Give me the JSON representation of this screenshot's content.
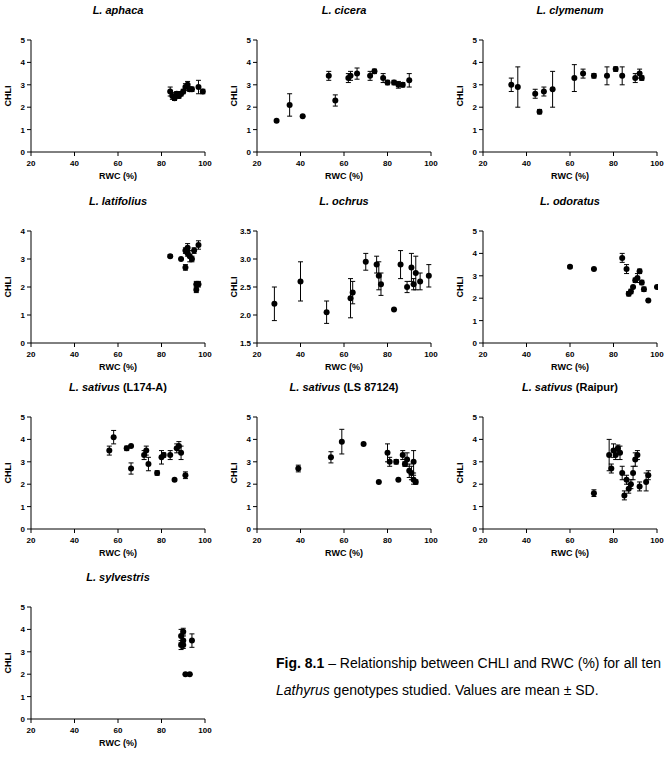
{
  "chart_data": [
    {
      "type": "scatter",
      "title": "L. aphaca",
      "x_label": "RWC (%)",
      "y_label": "CHLI",
      "xlim": [
        20,
        100
      ],
      "xticks": [
        20,
        40,
        60,
        80,
        100
      ],
      "ylim": [
        0,
        5
      ],
      "yticks": [
        0,
        1,
        2,
        3,
        4,
        5
      ],
      "marker": "circle",
      "color": "#000000",
      "x": [
        84,
        85,
        86,
        87,
        88,
        89,
        90,
        91,
        92,
        93,
        94,
        97,
        99
      ],
      "values": [
        2.7,
        2.5,
        2.4,
        2.6,
        2.5,
        2.6,
        2.7,
        2.9,
        3.0,
        2.8,
        2.8,
        2.9,
        2.7
      ],
      "errors": [
        0.2,
        0.15,
        0.1,
        0.1,
        0.1,
        0.1,
        0.1,
        0.15,
        0.15,
        0.1,
        0.1,
        0.3,
        0.1
      ]
    },
    {
      "type": "scatter",
      "title": "L. cicera",
      "x_label": "RWC (%)",
      "y_label": "CHLI",
      "xlim": [
        20,
        100
      ],
      "xticks": [
        20,
        40,
        60,
        80,
        100
      ],
      "ylim": [
        0,
        5
      ],
      "yticks": [
        0,
        1,
        2,
        3,
        4,
        5
      ],
      "marker": "circle",
      "color": "#000000",
      "x": [
        29,
        35,
        41,
        53,
        56,
        62,
        63,
        66,
        72,
        74,
        78,
        80,
        83,
        85,
        87,
        90
      ],
      "values": [
        1.4,
        2.1,
        1.6,
        3.4,
        2.3,
        3.3,
        3.4,
        3.5,
        3.4,
        3.6,
        3.3,
        3.1,
        3.1,
        3.0,
        3.0,
        3.2
      ],
      "errors": [
        0.05,
        0.5,
        0,
        0.2,
        0.25,
        0.2,
        0.2,
        0.25,
        0.2,
        0.1,
        0.2,
        0.1,
        0.1,
        0.15,
        0.1,
        0.3
      ]
    },
    {
      "type": "scatter",
      "title": "L. clymenum",
      "x_label": "RWC (%)",
      "y_label": "CHLI",
      "xlim": [
        20,
        100
      ],
      "xticks": [
        20,
        40,
        60,
        80,
        100
      ],
      "ylim": [
        0,
        5
      ],
      "yticks": [
        0,
        1,
        2,
        3,
        4,
        5
      ],
      "marker": "circle",
      "color": "#000000",
      "x": [
        33,
        36,
        44,
        46,
        48,
        52,
        62,
        66,
        71,
        77,
        81,
        84,
        90,
        92,
        93
      ],
      "values": [
        3.0,
        2.9,
        2.6,
        1.8,
        2.7,
        2.8,
        3.3,
        3.5,
        3.4,
        3.4,
        3.7,
        3.4,
        3.3,
        3.5,
        3.3
      ],
      "errors": [
        0.3,
        0.9,
        0.2,
        0.1,
        0.2,
        0.8,
        0.6,
        0.2,
        0.1,
        0.4,
        0.1,
        0.4,
        0.2,
        0.2,
        0.1
      ]
    },
    {
      "type": "scatter",
      "title": "L. latifolius",
      "x_label": "RWC (%)",
      "y_label": "CHLI",
      "xlim": [
        20,
        100
      ],
      "xticks": [
        20,
        40,
        60,
        80,
        100
      ],
      "ylim": [
        0,
        4
      ],
      "yticks": [
        0,
        1,
        2,
        3,
        4
      ],
      "marker": "circle",
      "color": "#000000",
      "x": [
        84,
        89,
        91,
        91,
        92,
        92,
        93,
        94,
        95,
        96,
        96,
        97,
        97
      ],
      "values": [
        3.1,
        3.0,
        3.3,
        2.7,
        3.4,
        3.2,
        3.1,
        3.0,
        3.3,
        2.1,
        1.9,
        3.5,
        2.1
      ],
      "errors": [
        0.05,
        0,
        0.1,
        0.1,
        0.15,
        0.1,
        0.2,
        0.1,
        0.1,
        0.1,
        0.1,
        0.15,
        0.1
      ]
    },
    {
      "type": "scatter",
      "title": "L. ochrus",
      "x_label": "RWC (%)",
      "y_label": "CHLI",
      "xlim": [
        20,
        100
      ],
      "xticks": [
        20,
        40,
        60,
        80,
        100
      ],
      "ylim": [
        1.5,
        3.5
      ],
      "yticks": [
        1.5,
        {
          "value": 2,
          "label": "2.0"
        },
        2.5,
        {
          "value": 3,
          "label": "3.0"
        },
        3.5
      ],
      "marker": "circle",
      "color": "#000000",
      "x": [
        28,
        40,
        52,
        63,
        64,
        70,
        75,
        76,
        77,
        83,
        86,
        89,
        91,
        92,
        93,
        95,
        99
      ],
      "values": [
        2.2,
        2.6,
        2.05,
        2.3,
        2.4,
        2.95,
        2.9,
        2.7,
        2.55,
        2.1,
        2.9,
        2.5,
        2.85,
        2.55,
        2.75,
        2.6,
        2.7
      ],
      "errors": [
        0.3,
        0.35,
        0.2,
        0.35,
        0.2,
        0.15,
        0.15,
        0.25,
        0.2,
        0,
        0.25,
        0.1,
        0.25,
        0.1,
        0.3,
        0.15,
        0.2
      ]
    },
    {
      "type": "scatter",
      "title": "L. odoratus",
      "x_label": "RWC (%)",
      "y_label": "CHLI",
      "xlim": [
        20,
        100
      ],
      "xticks": [
        20,
        40,
        60,
        80,
        100
      ],
      "ylim": [
        0,
        5
      ],
      "yticks": [
        0,
        1,
        2,
        3,
        4,
        5
      ],
      "marker": "circle",
      "color": "#000000",
      "x": [
        60,
        71,
        84,
        86,
        87,
        88,
        89,
        90,
        91,
        92,
        93,
        94,
        96,
        100
      ],
      "values": [
        3.4,
        3.3,
        3.8,
        3.3,
        2.2,
        2.3,
        2.5,
        2.8,
        2.9,
        3.2,
        2.7,
        2.4,
        1.9,
        2.5
      ],
      "errors": [
        0.05,
        0,
        0.2,
        0.2,
        0.1,
        0.1,
        0,
        0.1,
        0.2,
        0.1,
        0.1,
        0.1,
        0,
        0
      ]
    },
    {
      "type": "scatter",
      "title": "L. sativus (L174-A)",
      "x_label": "RWC (%)",
      "y_label": "CHLI",
      "xlim": [
        20,
        100
      ],
      "xticks": [
        20,
        40,
        60,
        80,
        100
      ],
      "ylim": [
        0,
        5
      ],
      "yticks": [
        0,
        1,
        2,
        3,
        4,
        5
      ],
      "marker": "circle",
      "color": "#000000",
      "x": [
        56,
        58,
        64,
        66,
        66,
        72,
        73,
        74,
        78,
        80,
        81,
        84,
        86,
        87,
        88,
        89,
        91
      ],
      "values": [
        3.5,
        4.1,
        3.6,
        3.7,
        2.7,
        3.3,
        3.5,
        2.9,
        2.5,
        3.2,
        3.3,
        3.3,
        2.2,
        3.6,
        3.7,
        3.4,
        2.4
      ],
      "errors": [
        0.2,
        0.3,
        0.1,
        0,
        0.25,
        0.2,
        0.2,
        0.3,
        0.1,
        0.3,
        0.1,
        0.2,
        0.05,
        0.2,
        0.2,
        0.3,
        0.15
      ]
    },
    {
      "type": "scatter",
      "title": "L. sativus (LS 87124)",
      "x_label": "RWC (%)",
      "y_label": "CHLI",
      "xlim": [
        20,
        100
      ],
      "xticks": [
        20,
        40,
        60,
        80,
        100
      ],
      "ylim": [
        0,
        5
      ],
      "yticks": [
        0,
        1,
        2,
        3,
        4,
        5
      ],
      "marker": "circle",
      "color": "#000000",
      "x": [
        39,
        54,
        59,
        69,
        76,
        80,
        81,
        84,
        85,
        87,
        88,
        89,
        90,
        91,
        92,
        92,
        93
      ],
      "values": [
        2.7,
        3.2,
        3.9,
        3.8,
        2.1,
        3.4,
        3.0,
        3.0,
        2.2,
        3.3,
        2.9,
        3.1,
        2.6,
        2.5,
        3.0,
        2.2,
        2.1
      ],
      "errors": [
        0.15,
        0.25,
        0.55,
        0,
        0,
        0.4,
        0.2,
        0.1,
        0,
        0.2,
        0.1,
        0.3,
        0.3,
        0.3,
        0.5,
        0.2,
        0.1
      ]
    },
    {
      "type": "scatter",
      "title": "L. sativus (Raipur)",
      "x_label": "RWC (%)",
      "y_label": "CHLI",
      "xlim": [
        20,
        100
      ],
      "xticks": [
        20,
        40,
        60,
        80,
        100
      ],
      "ylim": [
        0,
        5
      ],
      "yticks": [
        0,
        1,
        2,
        3,
        4,
        5
      ],
      "marker": "circle",
      "color": "#000000",
      "x": [
        71,
        78,
        79,
        80,
        81,
        82,
        83,
        84,
        85,
        86,
        87,
        88,
        89,
        90,
        91,
        92,
        95,
        96
      ],
      "values": [
        1.6,
        3.3,
        2.7,
        3.5,
        3.3,
        3.6,
        3.4,
        2.5,
        1.5,
        2.2,
        1.8,
        2.0,
        2.5,
        3.1,
        3.3,
        1.9,
        2.1,
        2.4
      ],
      "errors": [
        0.15,
        0.7,
        0.2,
        0.3,
        0.2,
        0.15,
        0.3,
        0.3,
        0.2,
        0.2,
        0.2,
        0.2,
        0.3,
        0.3,
        0.2,
        0.2,
        0.4,
        0.2
      ]
    },
    {
      "type": "scatter",
      "title": "L. sylvestris",
      "x_label": "RWC (%)",
      "y_label": "CHLI",
      "xlim": [
        20,
        100
      ],
      "xticks": [
        20,
        40,
        60,
        80,
        100
      ],
      "ylim": [
        0,
        5
      ],
      "yticks": [
        0,
        1,
        2,
        3,
        4,
        5
      ],
      "marker": "circle",
      "color": "#000000",
      "x": [
        89,
        89,
        90,
        90,
        91,
        93,
        94,
        90
      ],
      "values": [
        3.3,
        3.7,
        3.5,
        3.9,
        2.0,
        2.0,
        3.5,
        3.3
      ],
      "errors": [
        0.2,
        0.3,
        0.2,
        0.15,
        0,
        0,
        0.3,
        0.15
      ]
    }
  ],
  "caption": {
    "label": "Fig. 8.1",
    "text_before": " – Relationship between CHLI and RWC (%) for all ten ",
    "italic": "Lathyrus",
    "text_after": " genotypes studied. Values are mean ± SD."
  }
}
